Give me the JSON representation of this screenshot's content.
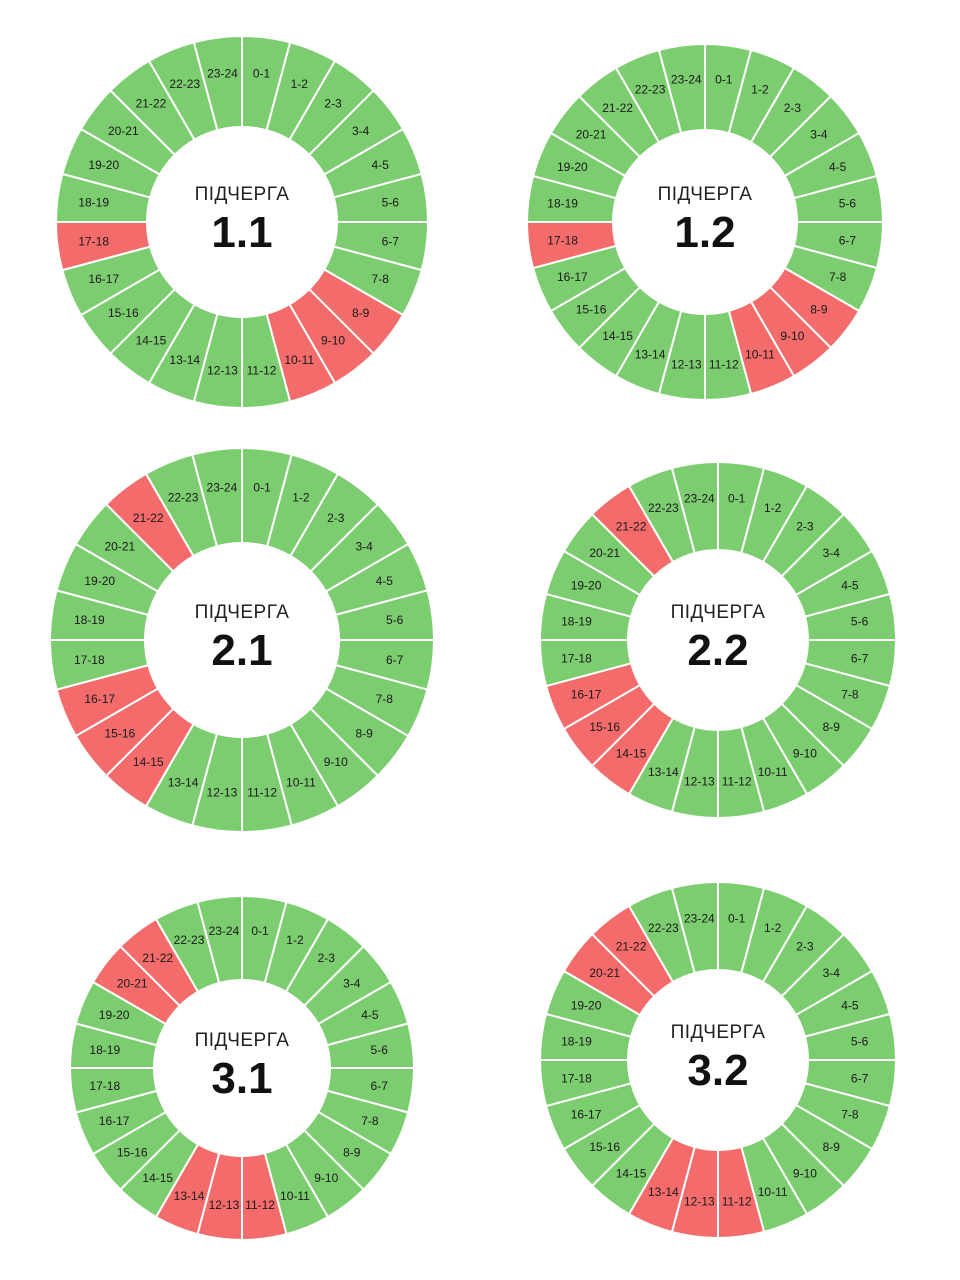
{
  "colors": {
    "on": "#7ccd6f",
    "off": "#f46b6b",
    "divider": "#ffffff"
  },
  "hours": [
    "0-1",
    "1-2",
    "2-3",
    "3-4",
    "4-5",
    "5-6",
    "6-7",
    "7-8",
    "8-9",
    "9-10",
    "10-11",
    "11-12",
    "12-13",
    "13-14",
    "14-15",
    "15-16",
    "16-17",
    "17-18",
    "18-19",
    "19-20",
    "20-21",
    "21-22",
    "22-23",
    "23-24"
  ],
  "chart_data": [
    {
      "type": "pie",
      "caption": "ПІДЧЕРГА",
      "title": "1.1",
      "off_hours": [
        "8-9",
        "9-10",
        "10-11",
        "17-18"
      ]
    },
    {
      "type": "pie",
      "caption": "ПІДЧЕРГА",
      "title": "1.2",
      "off_hours": [
        "8-9",
        "9-10",
        "10-11",
        "17-18"
      ]
    },
    {
      "type": "pie",
      "caption": "ПІДЧЕРГА",
      "title": "2.1",
      "off_hours": [
        "14-15",
        "15-16",
        "16-17",
        "21-22"
      ]
    },
    {
      "type": "pie",
      "caption": "ПІДЧЕРГА",
      "title": "2.2",
      "off_hours": [
        "14-15",
        "15-16",
        "16-17",
        "21-22"
      ]
    },
    {
      "type": "pie",
      "caption": "ПІДЧЕРГА",
      "title": "3.1",
      "off_hours": [
        "11-12",
        "12-13",
        "13-14",
        "20-21",
        "21-22"
      ]
    },
    {
      "type": "pie",
      "caption": "ПІДЧЕРГА",
      "title": "3.2",
      "off_hours": [
        "11-12",
        "12-13",
        "13-14",
        "20-21",
        "21-22"
      ]
    }
  ]
}
